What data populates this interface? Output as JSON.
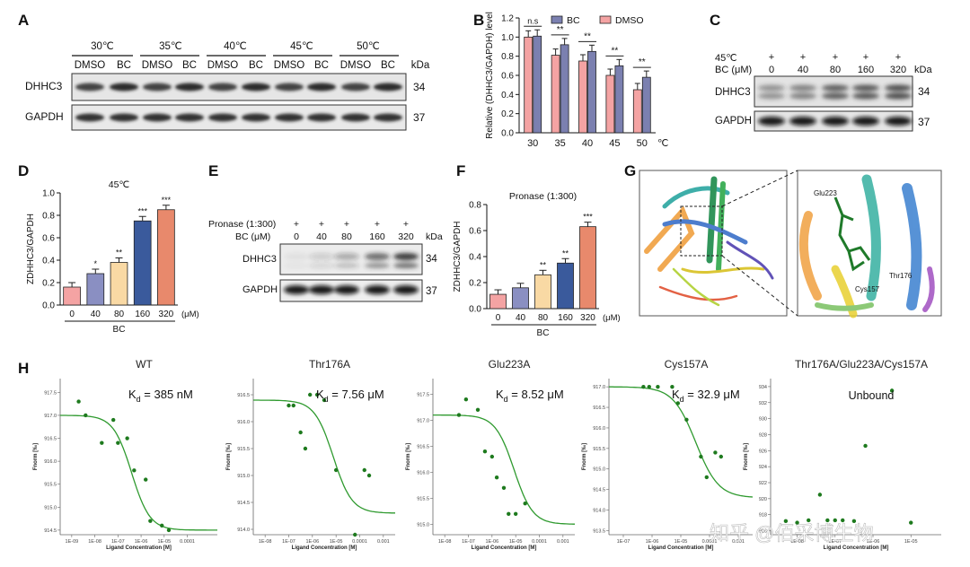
{
  "panel_letters": {
    "A": "A",
    "B": "B",
    "C": "C",
    "D": "D",
    "E": "E",
    "F": "F",
    "G": "G",
    "H": "H"
  },
  "panelA": {
    "temps": [
      "30℃",
      "35℃",
      "40℃",
      "45℃",
      "50℃"
    ],
    "lanes": [
      "DMSO",
      "BC",
      "DMSO",
      "BC",
      "DMSO",
      "BC",
      "DMSO",
      "BC",
      "DMSO",
      "BC"
    ],
    "kda_label": "kDa",
    "row_labels": [
      "DHHC3",
      "GAPDH"
    ],
    "row_kda": [
      "34",
      "37"
    ]
  },
  "panelB": {
    "legend": [
      "BC",
      "DMSO"
    ],
    "ns_label": "n.s",
    "sig": [
      "**",
      "**",
      "**",
      "**"
    ],
    "unit": "℃"
  },
  "panelC": {
    "temp_label": "45℃",
    "temp_marks": [
      "+",
      "+",
      "+",
      "+",
      "+"
    ],
    "bc_label": "BC (μM)",
    "bc_values": [
      "0",
      "40",
      "80",
      "160",
      "320"
    ],
    "kda_label": "kDa",
    "row_labels": [
      "DHHC3",
      "GAPDH"
    ],
    "row_kda": [
      "34",
      "37"
    ]
  },
  "panelD": {
    "title": "45℃",
    "unit": "(μM)",
    "group": "BC",
    "sig": [
      "",
      "*",
      "**",
      "***",
      "***"
    ]
  },
  "panelE": {
    "pronase_label": "Pronase (1:300)",
    "pronase_marks": [
      "+",
      "+",
      "+",
      "+",
      "+"
    ],
    "bc_label": "BC (μM)",
    "bc_values": [
      "0",
      "40",
      "80",
      "160",
      "320"
    ],
    "kda_label": "kDa",
    "row_labels": [
      "DHHC3",
      "GAPDH"
    ],
    "row_kda": [
      "34",
      "37"
    ]
  },
  "panelF": {
    "title": "Pronase (1:300)",
    "unit": "(μM)",
    "group": "BC",
    "sig": [
      "",
      "",
      "**",
      "**",
      "***"
    ]
  },
  "panelG": {
    "labels": [
      "Glu223",
      "Thr176",
      "Cys157"
    ]
  },
  "panelH": {
    "ylabel": "Fnorm [‰]",
    "xlabel": "Ligand Concentration [M]",
    "kd_prefix": "K",
    "kd_sub": "d",
    "plots": [
      {
        "title": "WT",
        "kd": " = 385 nM",
        "yticks": [
          "917.5",
          "917.0",
          "916.5",
          "916.0",
          "915.5",
          "915.0",
          "914.5"
        ],
        "xticks": [
          "1E-09",
          "1E-08",
          "1E-07",
          "1E-06",
          "1E-05",
          "0.0001"
        ]
      },
      {
        "title": "Thr176A",
        "kd": " = 7.56 μM",
        "yticks": [
          "916.5",
          "916.0",
          "915.5",
          "915.0",
          "914.5",
          "914.0"
        ],
        "xticks": [
          "1E-08",
          "1E-07",
          "1E-06",
          "1E-05",
          "0.0001",
          "0.001"
        ]
      },
      {
        "title": "Glu223A",
        "kd": " = 8.52 μM",
        "yticks": [
          "917.5",
          "917.0",
          "916.5",
          "916.0",
          "915.5",
          "915.0"
        ],
        "xticks": [
          "1E-08",
          "1E-07",
          "1E-06",
          "1E-05",
          "0.0001",
          "0.001"
        ]
      },
      {
        "title": "Cys157A",
        "kd": " = 32.9 μM",
        "yticks": [
          "917.0",
          "916.5",
          "916.0",
          "915.5",
          "915.0",
          "914.5",
          "914.0",
          "913.5"
        ],
        "xticks": [
          "1E-07",
          "1E-06",
          "1E-05",
          "0.0001",
          "0.001"
        ]
      },
      {
        "title": "Thr176A/Glu223A/Cys157A",
        "kd": "Unbound",
        "yticks": [
          "934",
          "932",
          "930",
          "928",
          "926",
          "924",
          "922",
          "920",
          "918",
          "916"
        ],
        "xticks": [
          "1E-08",
          "1E-07",
          "1E-06",
          "1E-05"
        ]
      }
    ]
  },
  "watermark": "知乎 @佰采博生物",
  "chart_data": [
    {
      "type": "bar",
      "panel": "B",
      "title": "",
      "ylabel": "Relative (DHHC3/GAPDH) level",
      "xlabel": "℃",
      "categories": [
        "30",
        "35",
        "40",
        "45",
        "50"
      ],
      "ylim": [
        0.0,
        1.2
      ],
      "yticks": [
        "0.0",
        "0.2",
        "0.4",
        "0.6",
        "0.8",
        "1.0",
        "1.2"
      ],
      "series": [
        {
          "name": "DMSO",
          "color": "#f4a3a3",
          "values": [
            1.0,
            0.81,
            0.75,
            0.6,
            0.45
          ]
        },
        {
          "name": "BC",
          "color": "#7b80b0",
          "values": [
            1.01,
            0.92,
            0.85,
            0.7,
            0.58
          ]
        }
      ]
    },
    {
      "type": "bar",
      "panel": "D",
      "title": "45℃",
      "ylabel": "ZDHHC3/GAPDH",
      "categories": [
        "0",
        "40",
        "80",
        "160",
        "320"
      ],
      "ylim": [
        0.0,
        1.0
      ],
      "yticks": [
        "0.0",
        "0.2",
        "0.4",
        "0.6",
        "0.8",
        "1.0"
      ],
      "values": [
        0.16,
        0.28,
        0.38,
        0.75,
        0.85
      ],
      "colors": [
        "#f4a3a3",
        "#8a8fc2",
        "#f9d9a4",
        "#3a5a9c",
        "#e8896c"
      ]
    },
    {
      "type": "bar",
      "panel": "F",
      "title": "Pronase (1:300)",
      "ylabel": "ZDHHC3/GAPDH",
      "categories": [
        "0",
        "40",
        "80",
        "160",
        "320"
      ],
      "ylim": [
        0.0,
        0.8
      ],
      "yticks": [
        "0.0",
        "0.2",
        "0.4",
        "0.6",
        "0.8"
      ],
      "values": [
        0.11,
        0.16,
        0.26,
        0.35,
        0.63
      ],
      "colors": [
        "#f4a3a3",
        "#8a8fc2",
        "#f9d9a4",
        "#3a5a9c",
        "#e8896c"
      ]
    },
    {
      "type": "scatter",
      "panel": "H",
      "title": "WT",
      "xlabel": "Ligand Concentration [M]",
      "ylabel": "Fnorm [‰]",
      "xlim_log10": [
        -9.5,
        -2.7
      ],
      "ylim": [
        914.4,
        917.8
      ],
      "x_log10": [
        -8.7,
        -8.4,
        -7.7,
        -7.2,
        -7.0,
        -6.6,
        -6.3,
        -5.8,
        -5.6,
        -5.1,
        -4.8
      ],
      "y": [
        917.3,
        917.0,
        916.4,
        916.9,
        916.4,
        916.5,
        915.8,
        915.6,
        914.7,
        914.6,
        914.5
      ],
      "fit": {
        "bottom": 914.5,
        "top": 917.0,
        "log_kd": -6.41
      }
    },
    {
      "type": "scatter",
      "panel": "H",
      "title": "Thr176A",
      "xlabel": "Ligand Concentration [M]",
      "ylabel": "Fnorm [‰]",
      "xlim_log10": [
        -8.5,
        -2.5
      ],
      "ylim": [
        913.9,
        916.8
      ],
      "x_log10": [
        -7.0,
        -6.8,
        -6.5,
        -6.3,
        -6.1,
        -5.8,
        -5.5,
        -5.0,
        -4.2,
        -3.8,
        -3.6
      ],
      "y": [
        916.3,
        916.3,
        915.8,
        915.5,
        916.5,
        916.5,
        916.4,
        915.1,
        913.9,
        915.1,
        915.0
      ],
      "fit": {
        "bottom": 914.3,
        "top": 916.4,
        "log_kd": -5.12
      }
    },
    {
      "type": "scatter",
      "panel": "H",
      "title": "Glu223A",
      "xlabel": "Ligand Concentration [M]",
      "ylabel": "Fnorm [‰]",
      "xlim_log10": [
        -8.5,
        -2.5
      ],
      "ylim": [
        914.8,
        917.8
      ],
      "x_log10": [
        -7.4,
        -7.1,
        -6.6,
        -6.3,
        -6.0,
        -5.8,
        -5.5,
        -5.3,
        -5.0,
        -4.6
      ],
      "y": [
        917.1,
        917.4,
        917.2,
        916.4,
        916.3,
        915.9,
        915.7,
        915.2,
        915.2,
        915.4
      ],
      "fit": {
        "bottom": 915.0,
        "top": 917.1,
        "log_kd": -5.07
      }
    },
    {
      "type": "scatter",
      "panel": "H",
      "title": "Cys157A",
      "xlabel": "Ligand Concentration [M]",
      "ylabel": "Fnorm [‰]",
      "xlim_log10": [
        -7.5,
        -2.5
      ],
      "ylim": [
        913.4,
        917.2
      ],
      "x_log10": [
        -6.3,
        -6.1,
        -5.8,
        -5.3,
        -5.1,
        -4.8,
        -4.3,
        -4.1,
        -3.8,
        -3.6
      ],
      "y": [
        917.0,
        917.0,
        917.0,
        917.0,
        916.6,
        916.2,
        915.3,
        914.8,
        915.4,
        915.3
      ],
      "fit": {
        "bottom": 914.3,
        "top": 917.0,
        "log_kd": -4.48
      }
    },
    {
      "type": "scatter",
      "panel": "H",
      "title": "Thr176A/Glu223A/Cys157A",
      "xlabel": "Ligand Concentration [M]",
      "ylabel": "Fnorm [‰]",
      "xlim_log10": [
        -8.7,
        -4.2
      ],
      "ylim": [
        915.5,
        935.0
      ],
      "x_log10": [
        -8.3,
        -8.0,
        -7.7,
        -7.4,
        -7.2,
        -7.0,
        -6.8,
        -6.5,
        -6.2,
        -5.5,
        -5.0
      ],
      "y": [
        917.2,
        917.0,
        917.3,
        920.5,
        917.3,
        917.3,
        917.3,
        917.2,
        926.6,
        933.5,
        917.0
      ]
    }
  ]
}
